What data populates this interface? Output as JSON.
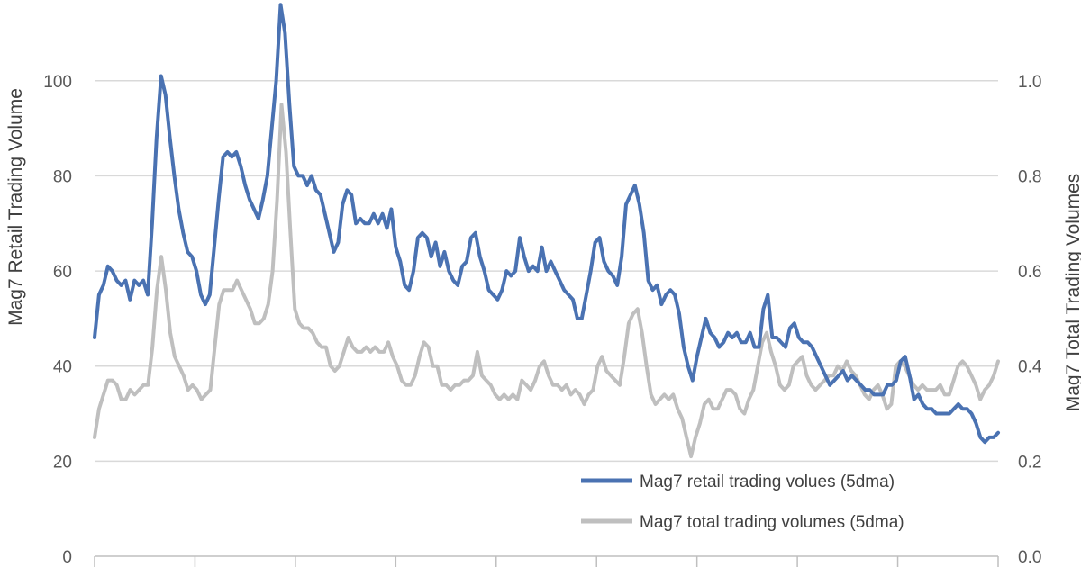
{
  "chart_data": {
    "type": "line",
    "left_axis": {
      "label": "Mag7 Retail Trading Volume",
      "ticks": [
        "0",
        "20",
        "40",
        "60",
        "80",
        "100"
      ],
      "ylim": [
        0,
        117
      ]
    },
    "right_axis": {
      "label": "Mag7 Total Trading Volumes",
      "ticks": [
        "0.0",
        "0.2",
        "0.4",
        "0.6",
        "0.8",
        "1.0"
      ],
      "ylim": [
        0,
        1.17
      ]
    },
    "x_ticks": 9,
    "grid": true,
    "legend": {
      "placement": "bottom-right"
    },
    "series": [
      {
        "name": "Mag7 retail trading volues (5dma)",
        "axis": "left",
        "color": "#4a72b2",
        "values": [
          46,
          55,
          57,
          61,
          60,
          58,
          57,
          58,
          54,
          58,
          57,
          58,
          55,
          70,
          88,
          101,
          97,
          88,
          80,
          73,
          68,
          64,
          63,
          60,
          55,
          53,
          55,
          65,
          75,
          84,
          85,
          84,
          85,
          82,
          78,
          75,
          73,
          71,
          75,
          80,
          90,
          100,
          116,
          110,
          95,
          82,
          80,
          80,
          78,
          80,
          77,
          76,
          72,
          68,
          64,
          66,
          74,
          77,
          76,
          70,
          71,
          70,
          70,
          72,
          70,
          72,
          69,
          73,
          65,
          62,
          57,
          56,
          60,
          67,
          68,
          67,
          63,
          66,
          61,
          64,
          60,
          58,
          57,
          61,
          62,
          67,
          68,
          63,
          60,
          56,
          55,
          54,
          56,
          60,
          59,
          60,
          67,
          63,
          60,
          61,
          60,
          65,
          60,
          62,
          60,
          58,
          56,
          55,
          54,
          50,
          50,
          55,
          60,
          66,
          67,
          62,
          60,
          59,
          57,
          63,
          74,
          76,
          78,
          74,
          68,
          58,
          56,
          57,
          53,
          55,
          56,
          55,
          51,
          44,
          40,
          37,
          42,
          46,
          50,
          47,
          46,
          44,
          45,
          47,
          46,
          47,
          45,
          45,
          47,
          44,
          44,
          52,
          55,
          46,
          46,
          45,
          44,
          48,
          49,
          46,
          45,
          45,
          44,
          42,
          40,
          38,
          36,
          37,
          38,
          39,
          37,
          38,
          37,
          36,
          35,
          35,
          34,
          34,
          34,
          36,
          36,
          37,
          41,
          42,
          38,
          33,
          34,
          32,
          31,
          31,
          30,
          30,
          30,
          30,
          31,
          32,
          31,
          31,
          30,
          28,
          25,
          24,
          25,
          25,
          26
        ]
      },
      {
        "name": "Mag7 total trading volumes (5dma)",
        "axis": "right",
        "color": "#bfbfbf",
        "values": [
          0.25,
          0.31,
          0.34,
          0.37,
          0.37,
          0.36,
          0.33,
          0.33,
          0.35,
          0.34,
          0.35,
          0.36,
          0.36,
          0.44,
          0.56,
          0.63,
          0.56,
          0.47,
          0.42,
          0.4,
          0.38,
          0.35,
          0.36,
          0.35,
          0.33,
          0.34,
          0.35,
          0.44,
          0.53,
          0.56,
          0.56,
          0.56,
          0.58,
          0.56,
          0.54,
          0.52,
          0.49,
          0.49,
          0.5,
          0.53,
          0.6,
          0.75,
          0.95,
          0.85,
          0.68,
          0.52,
          0.49,
          0.48,
          0.48,
          0.47,
          0.45,
          0.44,
          0.44,
          0.4,
          0.39,
          0.4,
          0.43,
          0.46,
          0.44,
          0.43,
          0.43,
          0.44,
          0.43,
          0.44,
          0.43,
          0.43,
          0.45,
          0.42,
          0.4,
          0.37,
          0.36,
          0.36,
          0.38,
          0.42,
          0.45,
          0.44,
          0.4,
          0.4,
          0.36,
          0.36,
          0.35,
          0.36,
          0.36,
          0.37,
          0.37,
          0.38,
          0.43,
          0.38,
          0.37,
          0.36,
          0.34,
          0.33,
          0.34,
          0.33,
          0.34,
          0.33,
          0.37,
          0.36,
          0.35,
          0.37,
          0.4,
          0.41,
          0.38,
          0.36,
          0.36,
          0.35,
          0.36,
          0.34,
          0.35,
          0.34,
          0.32,
          0.34,
          0.35,
          0.4,
          0.42,
          0.39,
          0.38,
          0.37,
          0.36,
          0.42,
          0.49,
          0.51,
          0.52,
          0.47,
          0.4,
          0.34,
          0.32,
          0.33,
          0.34,
          0.33,
          0.34,
          0.31,
          0.29,
          0.25,
          0.21,
          0.25,
          0.28,
          0.32,
          0.33,
          0.31,
          0.31,
          0.33,
          0.35,
          0.35,
          0.34,
          0.31,
          0.3,
          0.33,
          0.35,
          0.4,
          0.45,
          0.47,
          0.43,
          0.4,
          0.36,
          0.35,
          0.36,
          0.4,
          0.41,
          0.42,
          0.38,
          0.36,
          0.35,
          0.36,
          0.37,
          0.38,
          0.38,
          0.4,
          0.39,
          0.41,
          0.39,
          0.38,
          0.36,
          0.34,
          0.33,
          0.35,
          0.36,
          0.34,
          0.31,
          0.32,
          0.4,
          0.41,
          0.4,
          0.38,
          0.36,
          0.35,
          0.36,
          0.35,
          0.35,
          0.35,
          0.36,
          0.34,
          0.34,
          0.37,
          0.4,
          0.41,
          0.4,
          0.38,
          0.36,
          0.33,
          0.35,
          0.36,
          0.38,
          0.41
        ]
      }
    ]
  }
}
